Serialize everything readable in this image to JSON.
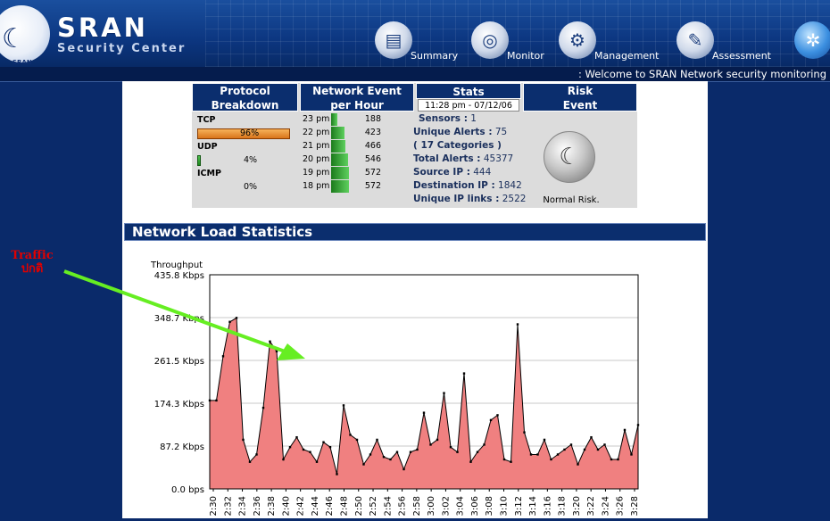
{
  "header": {
    "brand_top": "SRAN",
    "brand_bottom": "Security Center",
    "logo_small": "SRAN",
    "nav": [
      {
        "label": "Summary",
        "icon": "summary-icon"
      },
      {
        "label": "Monitor",
        "icon": "monitor-icon"
      },
      {
        "label": "Management",
        "icon": "management-icon"
      },
      {
        "label": "Assessment",
        "icon": "assessment-icon"
      },
      {
        "label": "",
        "icon": "gear-icon"
      }
    ],
    "welcome": ": Welcome to SRAN Network security monitoring"
  },
  "panel": {
    "protocol": {
      "head1": "Protocol",
      "head2": "Breakdown",
      "items": [
        {
          "name": "TCP",
          "pct": "96%",
          "value": 96
        },
        {
          "name": "UDP",
          "pct": "4%",
          "value": 4
        },
        {
          "name": "ICMP",
          "pct": "0%",
          "value": 0
        }
      ]
    },
    "events": {
      "head1": "Network Event",
      "head2": "per Hour",
      "rows": [
        {
          "time": "23 pm",
          "count": "188",
          "value": 188
        },
        {
          "time": "22 pm",
          "count": "423",
          "value": 423
        },
        {
          "time": "21 pm",
          "count": "466",
          "value": 466
        },
        {
          "time": "20 pm",
          "count": "546",
          "value": 546
        },
        {
          "time": "19 pm",
          "count": "572",
          "value": 572
        },
        {
          "time": "18 pm",
          "count": "572",
          "value": 572
        }
      ]
    },
    "stats": {
      "head": "Stats",
      "date": "11:28 pm - 07/12/06",
      "lines": [
        {
          "label": "Sensors :",
          "value": " 1"
        },
        {
          "label": "Unique Alerts :",
          "value": " 75"
        },
        {
          "label": "( 17 Categories )",
          "value": ""
        },
        {
          "label": "Total Alerts :",
          "value": " 45377"
        },
        {
          "label": "Source IP :",
          "value": " 444"
        },
        {
          "label": "Destination IP :",
          "value": " 1842"
        },
        {
          "label": "Unique IP links :",
          "value": " 2522"
        }
      ]
    },
    "risk": {
      "head1": "Risk",
      "head2": "Event",
      "icon": "risk-cat-icon",
      "label": "Normal Risk."
    }
  },
  "section_title": "Network Load Statistics",
  "annotation": {
    "line1": "Traffic",
    "line2": "ปกติ",
    "color": "#e00000",
    "arrow_color": "#66ee22"
  },
  "chart_data": {
    "type": "area",
    "title": "",
    "ylabel": "Throughput",
    "ylim": [
      0,
      435.8
    ],
    "y_ticks": [
      "435.8 Kbps",
      "348.7 Kbps",
      "261.5 Kbps",
      "174.3 Kbps",
      "87.2 Kbps",
      "0.0 bps"
    ],
    "y_tick_values": [
      435.8,
      348.7,
      261.5,
      174.3,
      87.2,
      0
    ],
    "x_labels": [
      "2:30",
      "2:32",
      "2:34",
      "2:36",
      "2:38",
      "2:40",
      "2:42",
      "2:44",
      "2:46",
      "2:48",
      "2:50",
      "2:52",
      "2:54",
      "2:56",
      "2:58",
      "3:00",
      "3:02",
      "3:04",
      "3:06",
      "3:08",
      "3:10",
      "3:12",
      "3:14",
      "3:16",
      "3:18",
      "3:20",
      "3:22",
      "3:24",
      "3:26",
      "3:28"
    ],
    "fill_color": "#f08080",
    "values": [
      180,
      180,
      270,
      340,
      348,
      100,
      55,
      70,
      165,
      300,
      280,
      60,
      85,
      105,
      80,
      75,
      55,
      95,
      85,
      30,
      170,
      110,
      100,
      50,
      70,
      100,
      65,
      60,
      75,
      40,
      75,
      80,
      155,
      90,
      100,
      195,
      85,
      75,
      235,
      55,
      75,
      90,
      140,
      150,
      60,
      55,
      335,
      115,
      70,
      70,
      100,
      60,
      70,
      80,
      90,
      50,
      80,
      105,
      80,
      90,
      60,
      60,
      120,
      70,
      130
    ]
  }
}
